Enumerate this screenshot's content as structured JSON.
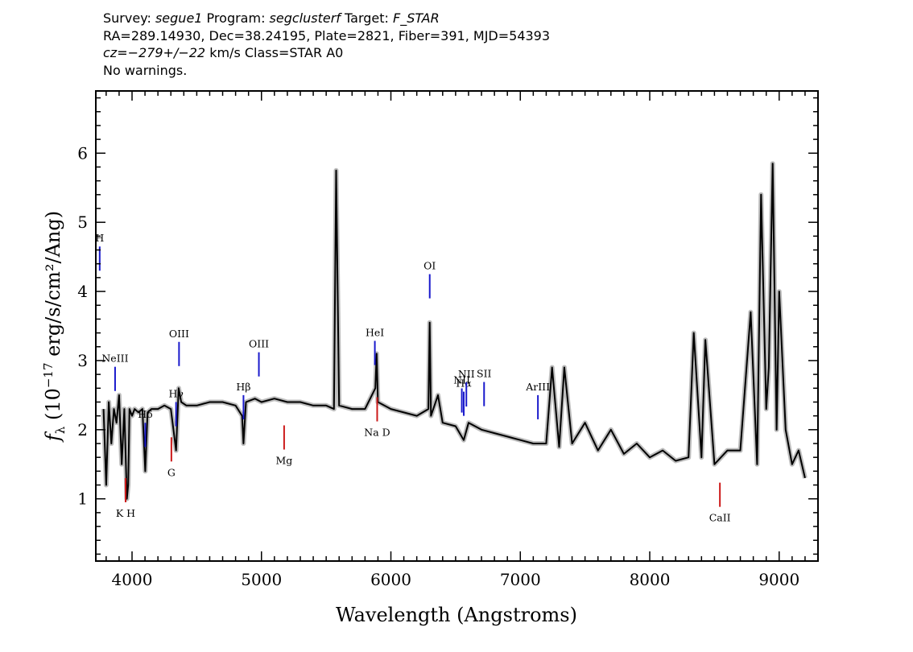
{
  "header": {
    "line1": {
      "survey_label": "Survey: ",
      "survey": "segue1",
      "program_label": " Program: ",
      "program": "segclusterf",
      "target_label": " Target: ",
      "target": "F_STAR"
    },
    "line2": "RA=289.14930, Dec=38.24195, Plate=2821, Fiber=391, MJD=54393",
    "line3": {
      "cz": "cz=−279+/−22",
      "rest": " km/s Class=STAR A0"
    },
    "line4": "No warnings."
  },
  "colors": {
    "flux": "#000000",
    "error_band": "#bdbdbd",
    "emission_marker": "#1a1acc",
    "absorption_marker": "#cc1a1a"
  },
  "chart_data": {
    "type": "line",
    "xlabel": "Wavelength (Angstroms)",
    "ylabel": "f_λ (10^-17 erg/s/cm²/Ang)",
    "xlim": [
      3720,
      9300
    ],
    "ylim": [
      0.1,
      6.9
    ],
    "xticks": [
      4000,
      5000,
      6000,
      7000,
      8000,
      9000
    ],
    "yticks": [
      1,
      2,
      3,
      4,
      5,
      6
    ],
    "grid": false,
    "legend": "none",
    "series": [
      {
        "x": [
          3780,
          3800,
          3820,
          3840,
          3860,
          3880,
          3900,
          3920,
          3940,
          3960,
          3970,
          3980,
          4000,
          4020,
          4050,
          4080,
          4102,
          4120,
          4150,
          4200,
          4250,
          4300,
          4340,
          4360,
          4380,
          4420,
          4500,
          4600,
          4700,
          4800,
          4850,
          4861,
          4880,
          4950,
          5000,
          5100,
          5200,
          5300,
          5400,
          5500,
          5560,
          5577,
          5600,
          5700,
          5800,
          5880,
          5890,
          5900,
          6000,
          6100,
          6200,
          6290,
          6300,
          6310,
          6364,
          6400,
          6500,
          6563,
          6600,
          6700,
          6800,
          6900,
          7000,
          7100,
          7200,
          7245,
          7300,
          7340,
          7400,
          7500,
          7600,
          7700,
          7800,
          7900,
          8000,
          8100,
          8200,
          8300,
          8340,
          8400,
          8430,
          8500,
          8600,
          8700,
          8780,
          8830,
          8860,
          8900,
          8920,
          8950,
          8980,
          9000,
          9050,
          9100,
          9150,
          9200
        ],
        "y": [
          2.3,
          1.2,
          2.4,
          1.8,
          2.3,
          2.1,
          2.5,
          1.5,
          2.3,
          1.0,
          1.2,
          2.3,
          2.2,
          2.3,
          2.25,
          2.3,
          1.4,
          2.25,
          2.3,
          2.3,
          2.35,
          2.3,
          1.7,
          2.6,
          2.4,
          2.35,
          2.35,
          2.4,
          2.4,
          2.35,
          2.2,
          1.8,
          2.4,
          2.45,
          2.4,
          2.45,
          2.4,
          2.4,
          2.35,
          2.35,
          2.3,
          5.75,
          2.35,
          2.3,
          2.3,
          2.6,
          3.1,
          2.4,
          2.3,
          2.25,
          2.2,
          2.3,
          3.55,
          2.2,
          2.5,
          2.1,
          2.05,
          1.85,
          2.1,
          2.0,
          1.95,
          1.9,
          1.85,
          1.8,
          1.8,
          2.9,
          1.75,
          2.9,
          1.8,
          2.1,
          1.7,
          2.0,
          1.65,
          1.8,
          1.6,
          1.7,
          1.55,
          1.6,
          3.4,
          1.6,
          3.3,
          1.5,
          1.7,
          1.7,
          3.7,
          1.5,
          5.4,
          2.3,
          2.9,
          5.85,
          2.0,
          4.0,
          2.0,
          1.5,
          1.7,
          1.3
        ]
      }
    ],
    "line_markers": [
      {
        "label": "H",
        "x": 3750,
        "kind": "emission"
      },
      {
        "label": "NeIII",
        "x": 3869,
        "kind": "emission"
      },
      {
        "label": "Hδ",
        "x": 4102,
        "kind": "emission"
      },
      {
        "label": "Hγ",
        "x": 4340,
        "kind": "emission"
      },
      {
        "label": "OIII",
        "x": 4363,
        "kind": "emission"
      },
      {
        "label": "Hβ",
        "x": 4861,
        "kind": "emission"
      },
      {
        "label": "OIII",
        "x": 4980,
        "kind": "emission"
      },
      {
        "label": "HeI",
        "x": 5876,
        "kind": "emission"
      },
      {
        "label": "OI",
        "x": 6300,
        "kind": "emission"
      },
      {
        "label": "NII",
        "x": 6548,
        "kind": "emission"
      },
      {
        "label": "Hα",
        "x": 6563,
        "kind": "emission"
      },
      {
        "label": "NII",
        "x": 6583,
        "kind": "emission"
      },
      {
        "label": "SII",
        "x": 6720,
        "kind": "emission"
      },
      {
        "label": "ArIII",
        "x": 7136,
        "kind": "emission"
      },
      {
        "label": "K H",
        "x": 3950,
        "kind": "absorption"
      },
      {
        "label": "G",
        "x": 4304,
        "kind": "absorption"
      },
      {
        "label": "Mg",
        "x": 5175,
        "kind": "absorption"
      },
      {
        "label": "Na D",
        "x": 5894,
        "kind": "absorption"
      },
      {
        "label": "CaII",
        "x": 8542,
        "kind": "absorption"
      }
    ]
  }
}
